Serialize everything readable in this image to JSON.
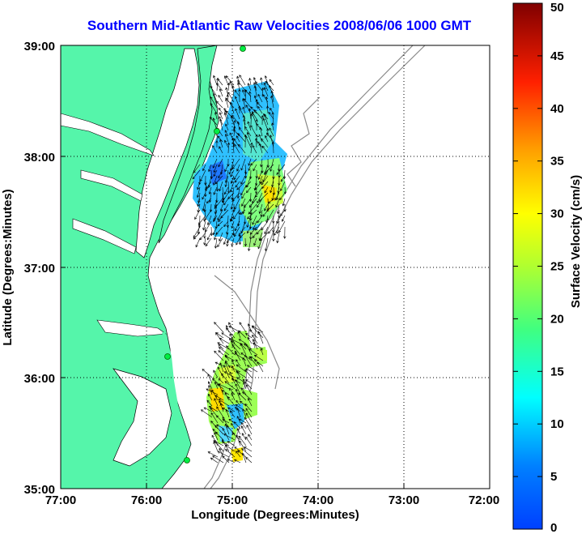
{
  "title": "Southern Mid-Atlantic Raw Velocities 2008/06/06 1000 GMT",
  "map": {
    "xlabel": "Longitude (Degrees:Minutes)",
    "ylabel": "Latitude (Degrees:Minutes)",
    "x_ticks": [
      "77:00",
      "76:00",
      "75:00",
      "74:00",
      "73:00",
      "72:00"
    ],
    "y_ticks": [
      "39:00",
      "38:00",
      "37:00",
      "36:00",
      "35:00"
    ],
    "land_color": "#55f5aa",
    "water_color": "#ffffff"
  },
  "colorbar": {
    "label": "Surface Velocity (cm/s)",
    "ticks": [
      "50",
      "45",
      "40",
      "35",
      "30",
      "25",
      "20",
      "15",
      "10",
      "5",
      "0"
    ],
    "range": [
      0,
      50
    ]
  },
  "colors": {
    "title": "#0000ff"
  }
}
